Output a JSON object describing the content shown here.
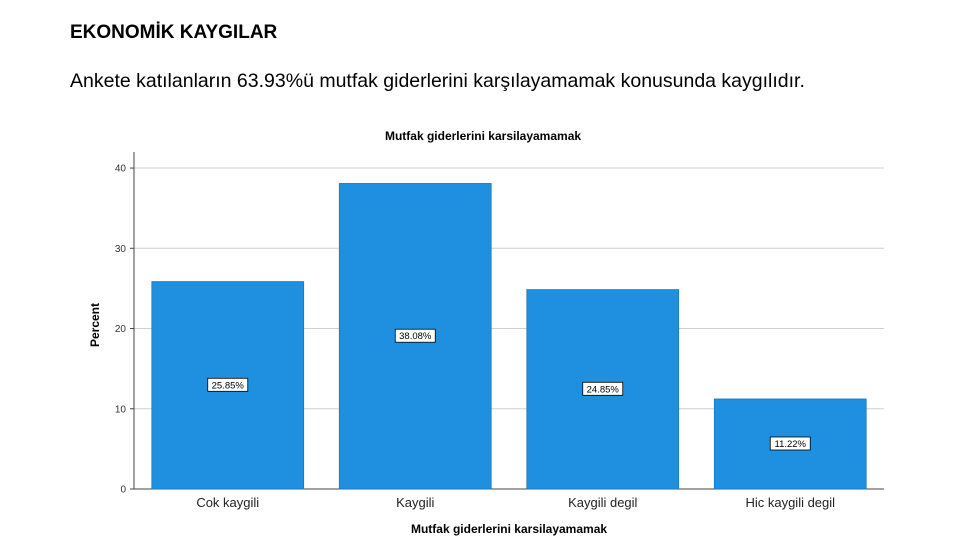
{
  "document": {
    "heading": "EKONOMİK KAYGILAR",
    "summary": "Ankete katılanların 63.93%ü mutfak giderlerini karşılayamamak konusunda kaygılıdır."
  },
  "chart_data": {
    "type": "bar",
    "title": "Mutfak giderlerini karsilayamamak",
    "xlabel": "Mutfak giderlerini karsilayamamak",
    "ylabel": "Percent",
    "categories": [
      "Cok kaygili",
      "Kaygili",
      "Kaygili degil",
      "Hic kaygili degil"
    ],
    "values": [
      25.85,
      38.08,
      24.85,
      11.22
    ],
    "data_labels": [
      "25.85%",
      "38.08%",
      "24.85%",
      "11.22%"
    ],
    "ylim": [
      0,
      42
    ],
    "yticks": [
      0,
      10,
      20,
      30,
      40
    ],
    "grid": true,
    "bar_color": "#1f8fe0"
  }
}
